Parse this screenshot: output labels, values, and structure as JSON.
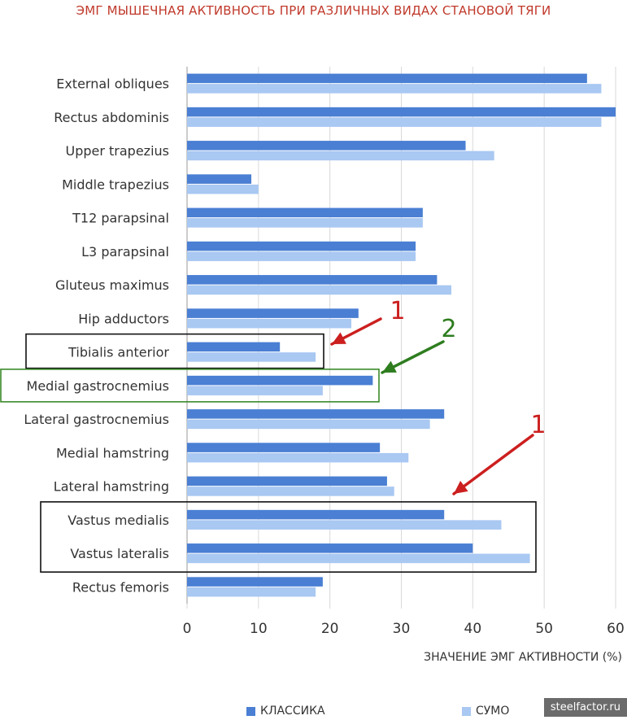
{
  "page_title": "ЭМГ МЫШЕЧНАЯ АКТИВНОСТЬ ПРИ РАЗЛИЧНЫХ ВИДАХ СТАНОВОЙ ТЯГИ",
  "watermark": "steelfactor.ru",
  "colors": {
    "classic": "#4a7fd3",
    "sumo": "#a9c8f2",
    "title": "#c0392b",
    "red_arrow": "#cc1f1f",
    "green_arrow": "#2e7d1f",
    "box_black": "#111111",
    "box_green": "#3a8a2a"
  },
  "chart_data": {
    "type": "bar",
    "orientation": "horizontal",
    "title": "ЭМГ МЫШЕЧНАЯ АКТИВНОСТЬ ПРИ РАЗЛИЧНЫХ ВИДАХ СТАНОВОЙ ТЯГИ",
    "xlabel": "ЗНАЧЕНИЕ ЭМГ АКТИВНОСТИ (%)",
    "ylabel": "",
    "xlim": [
      0,
      60
    ],
    "xticks": [
      "0",
      "10",
      "20",
      "30",
      "40",
      "50",
      "60"
    ],
    "grid": true,
    "legend_position": "bottom",
    "categories": [
      "External obliques",
      "Rectus abdominis",
      "Upper trapezius",
      "Middle trapezius",
      "T12 parapsinal",
      "L3 parapsinal",
      "Gluteus maximus",
      "Hip adductors",
      "Tibialis anterior",
      "Medial gastrocnemius",
      "Lateral gastrocnemius",
      "Medial hamstring",
      "Lateral hamstring",
      "Vastus medialis",
      "Vastus lateralis",
      "Rectus femoris"
    ],
    "series": [
      {
        "name": "КЛАССИКА",
        "values": [
          56,
          60,
          39,
          9,
          33,
          32,
          35,
          24,
          13,
          26,
          36,
          27,
          28,
          36,
          40,
          19
        ]
      },
      {
        "name": "СУМО",
        "values": [
          58,
          58,
          43,
          10,
          33,
          32,
          37,
          23,
          18,
          19,
          34,
          31,
          29,
          44,
          48,
          18
        ]
      }
    ],
    "annotations": [
      {
        "label": "1",
        "target": "Tibialis anterior",
        "color": "red"
      },
      {
        "label": "2",
        "target": "Medial gastrocnemius",
        "color": "green"
      },
      {
        "label": "1",
        "target": "Vastus medialis, Vastus lateralis",
        "color": "red"
      }
    ]
  }
}
